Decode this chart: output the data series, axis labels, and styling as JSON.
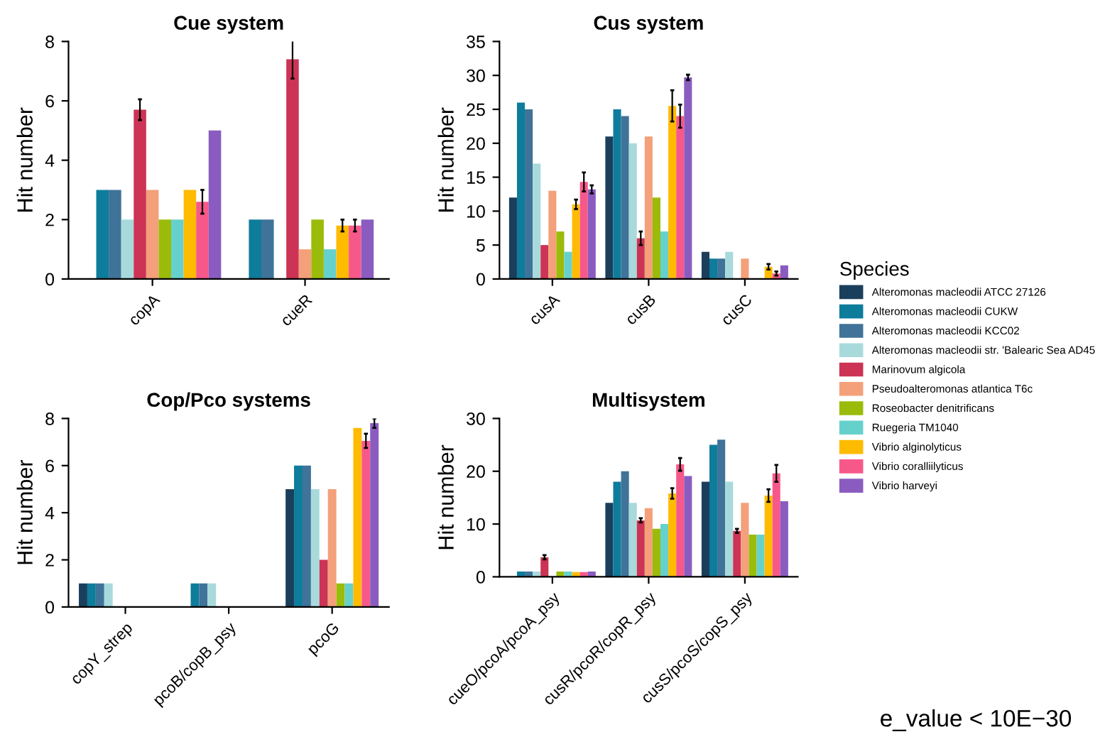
{
  "chart_data": [
    {
      "type": "bar",
      "title": "Cue system",
      "ylabel": "Hit number",
      "categories": [
        "copA",
        "cueR"
      ],
      "ylim": [
        0,
        8
      ],
      "yticks": [
        0,
        2,
        4,
        6,
        8
      ],
      "grid": false,
      "legend": "right",
      "legend_title": "Species",
      "series": [
        {
          "name": "Alteromonas macleodii ATCC 27126",
          "color": "#1a3f5c",
          "values": [
            0,
            0
          ]
        },
        {
          "name": "Alteromonas macleodii CUKW",
          "color": "#0e7c9b",
          "values": [
            3,
            2
          ]
        },
        {
          "name": "Alteromonas macleodii KCC02",
          "color": "#3f7399",
          "values": [
            3,
            2
          ]
        },
        {
          "name": "Alteromonas macleodii str. 'Balearic Sea AD45",
          "color": "#a8dadc",
          "values": [
            2,
            0
          ]
        },
        {
          "name": "Marinovum algicola",
          "color": "#cc3355",
          "values": [
            5.7,
            7.4
          ],
          "errors": [
            0.35,
            0.65
          ]
        },
        {
          "name": "Pseudoalteromonas atlantica T6c",
          "color": "#f4a07a",
          "values": [
            3,
            1
          ]
        },
        {
          "name": "Roseobacter denitrificans",
          "color": "#9bbb0a",
          "values": [
            2,
            2
          ]
        },
        {
          "name": "Ruegeria TM1040",
          "color": "#66d1cc",
          "values": [
            2,
            1
          ]
        },
        {
          "name": "Vibrio alginolyticus",
          "color": "#ffbb00",
          "values": [
            3,
            1.8
          ],
          "errors": [
            null,
            0.2
          ]
        },
        {
          "name": "Vibrio coralliilyticus",
          "color": "#f7588a",
          "values": [
            2.6,
            1.8
          ],
          "errors": [
            0.4,
            0.2
          ]
        },
        {
          "name": "Vibrio harveyi",
          "color": "#8a5cc0",
          "values": [
            5,
            2
          ]
        }
      ]
    },
    {
      "type": "bar",
      "title": "Cus system",
      "ylabel": "Hit number",
      "categories": [
        "cusA",
        "cusB",
        "cusC"
      ],
      "ylim": [
        0,
        35
      ],
      "yticks": [
        0,
        5,
        10,
        15,
        20,
        25,
        30,
        35
      ],
      "grid": false,
      "series": [
        {
          "color": "#1a3f5c",
          "values": [
            12,
            21,
            4
          ]
        },
        {
          "color": "#0e7c9b",
          "values": [
            26,
            25,
            3
          ]
        },
        {
          "color": "#3f7399",
          "values": [
            25,
            24,
            3
          ]
        },
        {
          "color": "#a8dadc",
          "values": [
            17,
            20,
            4
          ]
        },
        {
          "color": "#cc3355",
          "values": [
            5,
            6,
            0
          ],
          "errors": [
            null,
            1,
            null
          ]
        },
        {
          "color": "#f4a07a",
          "values": [
            13,
            21,
            3
          ]
        },
        {
          "color": "#9bbb0a",
          "values": [
            7,
            12,
            0
          ]
        },
        {
          "color": "#66d1cc",
          "values": [
            4,
            7,
            0
          ]
        },
        {
          "color": "#ffbb00",
          "values": [
            11,
            25.5,
            1.8
          ],
          "errors": [
            0.7,
            2.3,
            0.4
          ]
        },
        {
          "color": "#f7588a",
          "values": [
            14.3,
            24,
            0.8
          ],
          "errors": [
            1.4,
            1.7,
            0.3
          ]
        },
        {
          "color": "#8a5cc0",
          "values": [
            13.2,
            29.7,
            2
          ],
          "errors": [
            0.6,
            0.4,
            null
          ]
        }
      ]
    },
    {
      "type": "bar",
      "title": "Cop/Pco systems",
      "ylabel": "Hit number",
      "categories": [
        "copY_strep",
        "pcoB/copB_psy",
        "pcoG"
      ],
      "ylim": [
        0,
        8
      ],
      "yticks": [
        0,
        2,
        4,
        6,
        8
      ],
      "grid": false,
      "series": [
        {
          "color": "#1a3f5c",
          "values": [
            1,
            0,
            5
          ]
        },
        {
          "color": "#0e7c9b",
          "values": [
            1,
            1,
            6
          ]
        },
        {
          "color": "#3f7399",
          "values": [
            1,
            1,
            6
          ]
        },
        {
          "color": "#a8dadc",
          "values": [
            1,
            1,
            5
          ]
        },
        {
          "color": "#cc3355",
          "values": [
            0,
            0,
            2
          ]
        },
        {
          "color": "#f4a07a",
          "values": [
            0,
            0,
            5
          ]
        },
        {
          "color": "#9bbb0a",
          "values": [
            0,
            0,
            1
          ]
        },
        {
          "color": "#66d1cc",
          "values": [
            0,
            0,
            1
          ]
        },
        {
          "color": "#ffbb00",
          "values": [
            0,
            0,
            7.6
          ]
        },
        {
          "color": "#f7588a",
          "values": [
            0,
            0,
            7.05
          ],
          "errors": [
            null,
            null,
            0.3
          ]
        },
        {
          "color": "#8a5cc0",
          "values": [
            0,
            0,
            7.8
          ],
          "errors": [
            null,
            null,
            0.2
          ]
        }
      ]
    },
    {
      "type": "bar",
      "title": "Multisystem",
      "ylabel": "Hit number",
      "categories": [
        "cueO/pcoA/pcoA_psy",
        "cusR/pcoR/copR_psy",
        "cusS/pcoS/copS_psy"
      ],
      "ylim": [
        0,
        30
      ],
      "yticks": [
        0,
        10,
        20,
        30
      ],
      "grid": false,
      "annotations": [
        "e_value < 10E−30"
      ],
      "series": [
        {
          "color": "#1a3f5c",
          "values": [
            0,
            14,
            18
          ]
        },
        {
          "color": "#0e7c9b",
          "values": [
            1,
            18,
            25
          ]
        },
        {
          "color": "#3f7399",
          "values": [
            1,
            20,
            26
          ]
        },
        {
          "color": "#a8dadc",
          "values": [
            1,
            14,
            18
          ]
        },
        {
          "color": "#cc3355",
          "values": [
            3.7,
            10.7,
            8.7
          ],
          "errors": [
            0.4,
            0.4,
            0.4
          ]
        },
        {
          "color": "#f4a07a",
          "values": [
            0,
            13,
            14
          ]
        },
        {
          "color": "#9bbb0a",
          "values": [
            1,
            9.1,
            8
          ]
        },
        {
          "color": "#66d1cc",
          "values": [
            1,
            10,
            8
          ]
        },
        {
          "color": "#ffbb00",
          "values": [
            0.9,
            15.8,
            15.4
          ],
          "errors": [
            null,
            1,
            1.2
          ]
        },
        {
          "color": "#f7588a",
          "values": [
            0.9,
            21.3,
            19.6
          ],
          "errors": [
            null,
            1.2,
            1.6
          ]
        },
        {
          "color": "#8a5cc0",
          "values": [
            1,
            19.1,
            14.3
          ]
        }
      ]
    }
  ]
}
